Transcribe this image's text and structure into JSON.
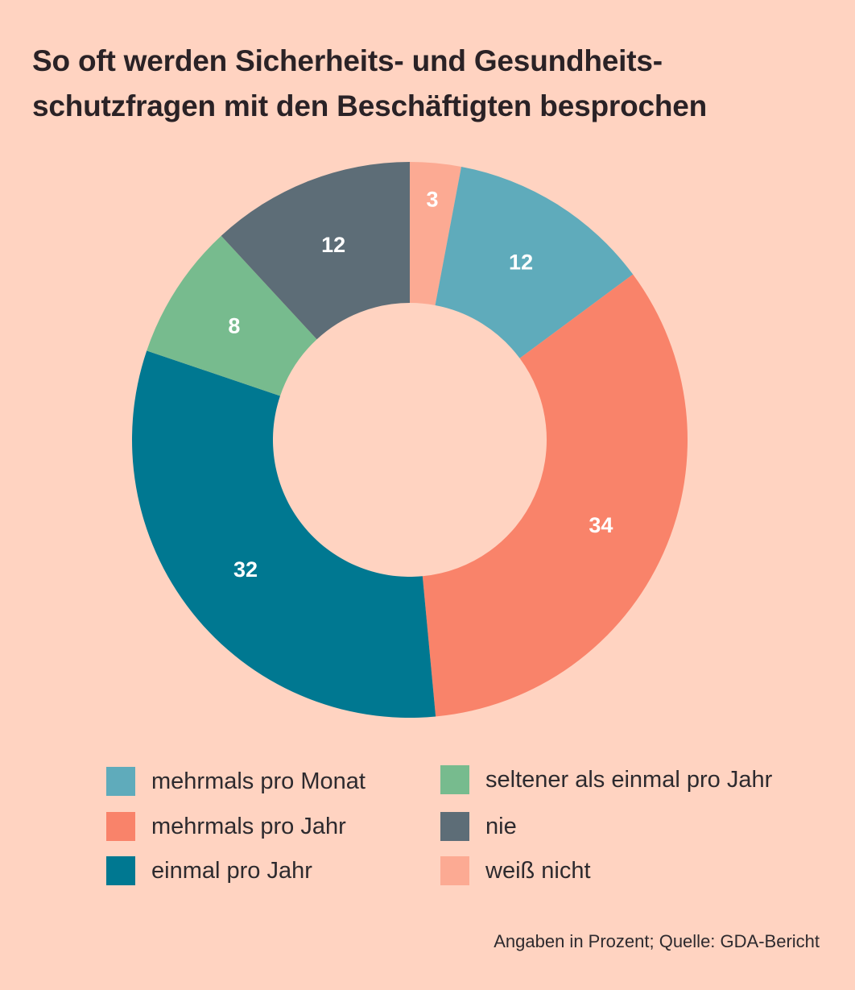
{
  "chart_data": {
    "type": "pie",
    "variant": "donut",
    "title_lines": [
      "So oft werden Sicherheits- und Gesundheits-",
      "schutzfragen mit den Beschäftigten besprochen"
    ],
    "unit": "Prozent",
    "slices": [
      {
        "label": "weiß nicht",
        "value": 3,
        "color": "#FCAA93"
      },
      {
        "label": "mehrmals pro Monat",
        "value": 12,
        "color": "#5FABBB"
      },
      {
        "label": "mehrmals pro Jahr",
        "value": 34,
        "color": "#F9836A"
      },
      {
        "label": "einmal pro Jahr",
        "value": 32,
        "color": "#007891"
      },
      {
        "label": "seltener als einmal pro Jahr",
        "value": 8,
        "color": "#77BB8E"
      },
      {
        "label": "nie",
        "value": 12,
        "color": "#5D6D77"
      }
    ],
    "legend": [
      {
        "label": "mehrmals pro Monat",
        "color": "#5FABBB"
      },
      {
        "label": "mehrmals pro Jahr",
        "color": "#F9836A"
      },
      {
        "label": "einmal pro Jahr",
        "color": "#007891"
      },
      {
        "label": "seltener als einmal pro Jahr",
        "color": "#77BB8E"
      },
      {
        "label": "nie",
        "color": "#5D6D77"
      },
      {
        "label": "weiß nicht",
        "color": "#FCAA93"
      }
    ],
    "source": "Angaben in Prozent; Quelle: GDA-Bericht"
  },
  "colors": {
    "background": "#FFD3C1",
    "data_label": "#FFFFFF"
  }
}
